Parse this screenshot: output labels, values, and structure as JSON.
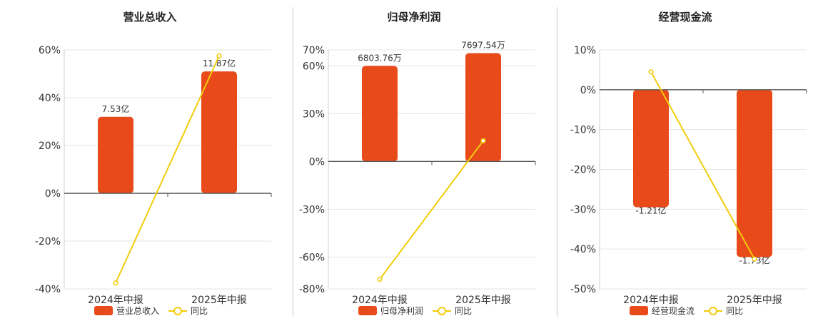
{
  "colors": {
    "bar": "#E84A1A",
    "line": "#F2CC0C",
    "grid": "#e6e6e6",
    "axis": "#555555",
    "text": "#333333"
  },
  "chart_data": [
    {
      "type": "bar",
      "title": "营业总收入",
      "categories": [
        "2024年中报",
        "2025年中报"
      ],
      "series": [
        {
          "name": "营业总收入",
          "type": "bar",
          "values": [
            32,
            51
          ],
          "labels": [
            "7.53亿",
            "11.87亿"
          ]
        },
        {
          "name": "同比",
          "type": "line",
          "values": [
            -37.5,
            57.5
          ]
        }
      ],
      "yticks": [
        60,
        40,
        20,
        0,
        -20,
        -40
      ],
      "ytick_labels": [
        "60%",
        "40%",
        "20%",
        "0%",
        "-20%",
        "-40%"
      ],
      "ylim": [
        -40,
        60
      ],
      "grid": true,
      "legend": "bottom"
    },
    {
      "type": "bar",
      "title": "归母净利润",
      "categories": [
        "2024年中报",
        "2025年中报"
      ],
      "series": [
        {
          "name": "归母净利润",
          "type": "bar",
          "values": [
            60,
            68
          ],
          "labels": [
            "6803.76万",
            "7697.54万"
          ]
        },
        {
          "name": "同比",
          "type": "line",
          "values": [
            -74,
            13
          ]
        }
      ],
      "yticks": [
        70,
        60,
        30,
        0,
        -30,
        -60,
        -80
      ],
      "ytick_labels": [
        "70%",
        "60%",
        "30%",
        "0%",
        "-30%",
        "-60%",
        "-80%"
      ],
      "ylim": [
        -80,
        70
      ],
      "grid": true,
      "legend": "bottom"
    },
    {
      "type": "bar",
      "title": "经营现金流",
      "categories": [
        "2024年中报",
        "2025年中报"
      ],
      "series": [
        {
          "name": "经营现金流",
          "type": "bar",
          "values": [
            -29.5,
            -42
          ],
          "labels": [
            "-1.21亿",
            "-1.73亿"
          ]
        },
        {
          "name": "同比",
          "type": "line",
          "values": [
            4.5,
            -42.5
          ]
        }
      ],
      "yticks": [
        10,
        0,
        -10,
        -20,
        -30,
        -40,
        -50
      ],
      "ytick_labels": [
        "10%",
        "0%",
        "-10%",
        "-20%",
        "-30%",
        "-40%",
        "-50%"
      ],
      "ylim": [
        -50,
        10
      ],
      "grid": true,
      "legend": "bottom"
    }
  ]
}
